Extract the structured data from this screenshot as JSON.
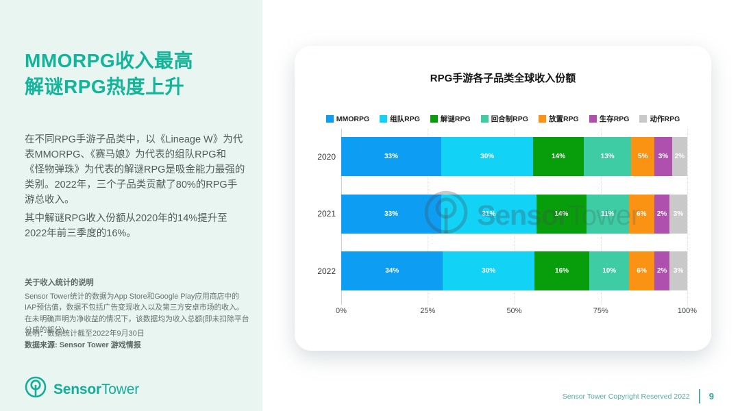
{
  "left_panel": {
    "title_lines": [
      "MMORPG收入最高",
      "解谜RPG热度上升"
    ],
    "paragraph1": "在不同RPG手游子品类中，以《Lineage W》为代表MMORPG、《赛马娘》为代表的组队RPG和《怪物弹珠》为代表的解谜RPG是吸金能力最强的类别。2022年，三个子品类贡献了80%的RPG手游总收入。",
    "paragraph2": "其中解谜RPG收入份额从2020年的14%提升至2022年前三季度的16%。",
    "notes_heading": "关于收入统计的说明",
    "notes_body": "Sensor Tower统计的数据为App Store和Google Play应用商店中的IAP预估值，数据不包括广告变现收入以及第三方安卓市场的收入。在未明确声明为净收益的情况下，该数据均为收入总额(即未扣除平台分成的部分)。",
    "note_line": "说明：数据统计截至2022年9月30日",
    "source_line": "数据来源: Sensor Tower 游戏情报"
  },
  "logo": {
    "bold": "Sensor",
    "regular": "Tower"
  },
  "watermark": {
    "bold": "Sensor",
    "regular": "Tower"
  },
  "chart_data": {
    "type": "bar",
    "stacked": true,
    "orientation": "horizontal",
    "title": "RPG手游各子品类全球收入份额",
    "categories": [
      "2020",
      "2021",
      "2022"
    ],
    "series": [
      {
        "name": "MMORPG",
        "color": "#0d9df3",
        "values": [
          33,
          33,
          34
        ]
      },
      {
        "name": "组队RPG",
        "color": "#12d2f6",
        "values": [
          30,
          31,
          30
        ]
      },
      {
        "name": "解谜RPG",
        "color": "#089e0b",
        "values": [
          14,
          14,
          16
        ]
      },
      {
        "name": "回合制RPG",
        "color": "#3dcca4",
        "values": [
          13,
          11,
          10
        ]
      },
      {
        "name": "放置RPG",
        "color": "#fa9214",
        "values": [
          5,
          6,
          6
        ]
      },
      {
        "name": "生存RPG",
        "color": "#b050ae",
        "values": [
          3,
          2,
          2
        ]
      },
      {
        "name": "动作RPG",
        "color": "#c9c9c9",
        "values": [
          2,
          3,
          3
        ]
      }
    ],
    "value_suffix": "%",
    "x_ticks": [
      "0%",
      "25%",
      "50%",
      "75%",
      "100%"
    ],
    "xlim": [
      0,
      100
    ],
    "legend_position": "top",
    "grid": "dotted-vertical"
  },
  "footer": {
    "copyright": "Sensor Tower Copyright Reserved 2022",
    "page": "9"
  },
  "colors": {
    "brand_teal": "#14ad97",
    "panel_bg": "#e9f5f1",
    "title_teal": "#12b49a",
    "footer_teal": "#55aaa5"
  }
}
